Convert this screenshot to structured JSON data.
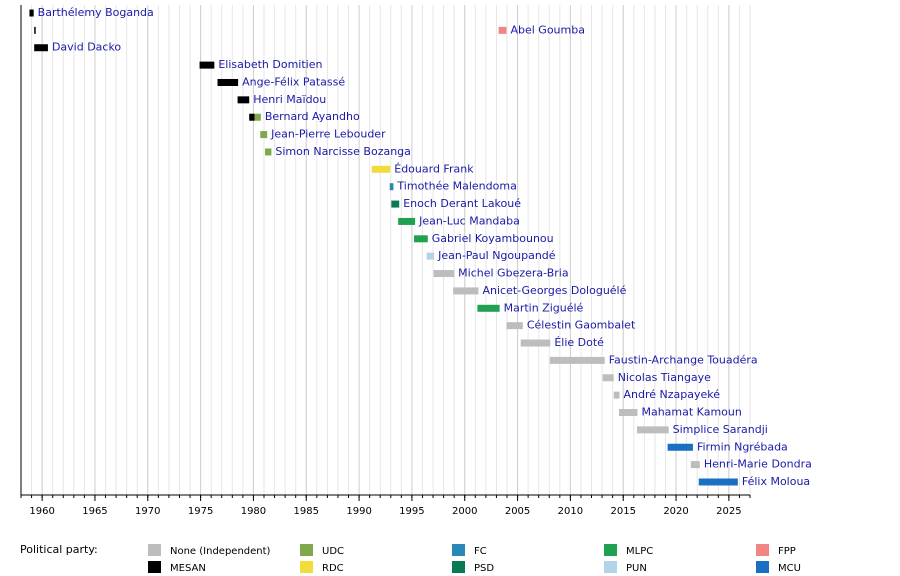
{
  "chart_data": {
    "type": "timeline",
    "xlim": [
      1958,
      2027
    ],
    "xticks": [
      1960,
      1965,
      1970,
      1975,
      1980,
      1985,
      1990,
      1995,
      2000,
      2005,
      2010,
      2015,
      2020,
      2025
    ],
    "grid": true,
    "legend_title": "Political party:",
    "parties": [
      {
        "name": "None (Independent)",
        "color": "#bdbdbd"
      },
      {
        "name": "MESAN",
        "color": "#000000"
      },
      {
        "name": "UDC",
        "color": "#7fa84a"
      },
      {
        "name": "RDC",
        "color": "#f2dc3c"
      },
      {
        "name": "FC",
        "color": "#2a88b8"
      },
      {
        "name": "PSD",
        "color": "#0a7a55"
      },
      {
        "name": "MLPC",
        "color": "#1fa151"
      },
      {
        "name": "PUN",
        "color": "#b3d3e8"
      },
      {
        "name": "FPP",
        "color": "#f28484"
      },
      {
        "name": "MCU",
        "color": "#1a6fc2"
      }
    ],
    "rows": [
      {
        "name": "Barthélemy Boganda",
        "terms": [
          {
            "start": 1958.8,
            "end": 1959.2,
            "party": "MESAN"
          }
        ]
      },
      {
        "name": "Abel Goumba",
        "terms": [
          {
            "start": 1959.25,
            "end": 1959.35,
            "party": "MESAN"
          },
          {
            "start": 2003.2,
            "end": 2003.95,
            "party": "FPP"
          }
        ]
      },
      {
        "name": "David Dacko",
        "terms": [
          {
            "start": 1959.25,
            "end": 1960.55,
            "party": "MESAN"
          }
        ]
      },
      {
        "name": "Elisabeth Domitien",
        "terms": [
          {
            "start": 1974.9,
            "end": 1976.3,
            "party": "MESAN"
          }
        ]
      },
      {
        "name": "Ange-Félix Patassé",
        "terms": [
          {
            "start": 1976.6,
            "end": 1978.55,
            "party": "MESAN"
          }
        ]
      },
      {
        "name": "Henri Maïdou",
        "terms": [
          {
            "start": 1978.5,
            "end": 1979.6,
            "party": "MESAN"
          }
        ]
      },
      {
        "name": "Bernard Ayandho",
        "terms": [
          {
            "start": 1979.6,
            "end": 1980.1,
            "party": "MESAN"
          },
          {
            "start": 1980.1,
            "end": 1980.7,
            "party": "UDC"
          }
        ]
      },
      {
        "name": "Jean-Pierre Lebouder",
        "terms": [
          {
            "start": 1980.65,
            "end": 1981.3,
            "party": "UDC"
          }
        ]
      },
      {
        "name": "Simon Narcisse Bozanga",
        "terms": [
          {
            "start": 1981.1,
            "end": 1981.7,
            "party": "UDC"
          }
        ]
      },
      {
        "name": "Édouard Frank",
        "terms": [
          {
            "start": 1991.2,
            "end": 1992.95,
            "party": "RDC"
          }
        ]
      },
      {
        "name": "Timothée Malendoma",
        "terms": [
          {
            "start": 1992.9,
            "end": 1993.25,
            "party": "FC"
          }
        ]
      },
      {
        "name": "Enoch Derant Lakoué",
        "terms": [
          {
            "start": 1993.05,
            "end": 1993.8,
            "party": "PSD"
          }
        ]
      },
      {
        "name": "Jean-Luc Mandaba",
        "terms": [
          {
            "start": 1993.7,
            "end": 1995.3,
            "party": "MLPC"
          }
        ]
      },
      {
        "name": "Gabriel Koyambounou",
        "terms": [
          {
            "start": 1995.2,
            "end": 1996.5,
            "party": "MLPC"
          }
        ]
      },
      {
        "name": "Jean-Paul Ngoupandé",
        "terms": [
          {
            "start": 1996.4,
            "end": 1997.1,
            "party": "PUN"
          }
        ]
      },
      {
        "name": "Michel Gbezera-Bria",
        "terms": [
          {
            "start": 1997.05,
            "end": 1999.0,
            "party": "None (Independent)"
          }
        ]
      },
      {
        "name": "Anicet-Georges Dologuélé",
        "terms": [
          {
            "start": 1998.9,
            "end": 2001.3,
            "party": "None (Independent)"
          }
        ]
      },
      {
        "name": "Martin Ziguélé",
        "terms": [
          {
            "start": 2001.2,
            "end": 2003.3,
            "party": "MLPC"
          }
        ]
      },
      {
        "name": "Célestin Gaombalet",
        "terms": [
          {
            "start": 2003.95,
            "end": 2005.5,
            "party": "None (Independent)"
          }
        ]
      },
      {
        "name": "Élie Doté",
        "terms": [
          {
            "start": 2005.3,
            "end": 2008.1,
            "party": "None (Independent)"
          }
        ]
      },
      {
        "name": "Faustin-Archange Touadéra",
        "terms": [
          {
            "start": 2008.05,
            "end": 2013.25,
            "party": "None (Independent)"
          }
        ]
      },
      {
        "name": "Nicolas Tiangaye",
        "terms": [
          {
            "start": 2013.05,
            "end": 2014.1,
            "party": "None (Independent)"
          }
        ]
      },
      {
        "name": "André Nzapayeké",
        "terms": [
          {
            "start": 2014.1,
            "end": 2014.65,
            "party": "None (Independent)"
          }
        ]
      },
      {
        "name": "Mahamat Kamoun",
        "terms": [
          {
            "start": 2014.6,
            "end": 2016.35,
            "party": "None (Independent)"
          }
        ]
      },
      {
        "name": "Simplice Sarandji",
        "terms": [
          {
            "start": 2016.3,
            "end": 2019.3,
            "party": "None (Independent)"
          }
        ]
      },
      {
        "name": "Firmin Ngrébada",
        "terms": [
          {
            "start": 2019.2,
            "end": 2021.6,
            "party": "MCU"
          }
        ]
      },
      {
        "name": "Henri-Marie Dondra",
        "terms": [
          {
            "start": 2021.4,
            "end": 2022.25,
            "party": "None (Independent)"
          }
        ]
      },
      {
        "name": "Félix Moloua",
        "terms": [
          {
            "start": 2022.15,
            "end": 2025.85,
            "party": "MCU"
          }
        ]
      }
    ]
  }
}
